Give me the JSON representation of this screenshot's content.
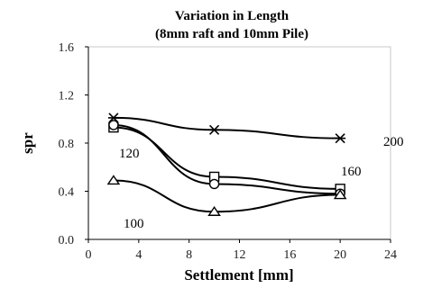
{
  "chart_data": {
    "type": "line",
    "title": "Variation in Length",
    "subtitle": "(8mm raft and 10mm Pile)",
    "xlabel": "Settlement [mm]",
    "ylabel": "spr",
    "xlim": [
      0,
      24
    ],
    "ylim": [
      0.0,
      1.6
    ],
    "xticks": [
      "0",
      "4",
      "8",
      "12",
      "16",
      "20",
      "24"
    ],
    "yticks": [
      "0.0",
      "0.4",
      "0.8",
      "1.2",
      "1.6"
    ],
    "grid": false,
    "series": [
      {
        "name": "200",
        "marker": "star",
        "x": [
          2,
          10,
          20
        ],
        "y": [
          1.01,
          0.91,
          0.84
        ]
      },
      {
        "name": "160",
        "marker": "square",
        "x": [
          2,
          10,
          20
        ],
        "y": [
          0.93,
          0.52,
          0.42
        ]
      },
      {
        "name": "120",
        "marker": "circle",
        "x": [
          2,
          10,
          20
        ],
        "y": [
          0.95,
          0.46,
          0.38
        ]
      },
      {
        "name": "100",
        "marker": "triangle",
        "x": [
          2,
          10,
          20
        ],
        "y": [
          0.49,
          0.23,
          0.37
        ]
      }
    ]
  }
}
